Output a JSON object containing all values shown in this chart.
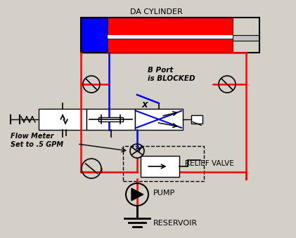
{
  "bg_color": "#d4d0c8",
  "fig_w": 4.21,
  "fig_h": 3.39,
  "dpi": 100,
  "title": "DA CYLINDER",
  "label_b_port": "B Port\nis BLOCKED",
  "label_x": "X",
  "label_flow": "Flow Meter\nSet to .5 GPM",
  "label_relief": "RELIEF VALVE",
  "label_pump": "PUMP",
  "label_reservoir": "RESERVOIR"
}
